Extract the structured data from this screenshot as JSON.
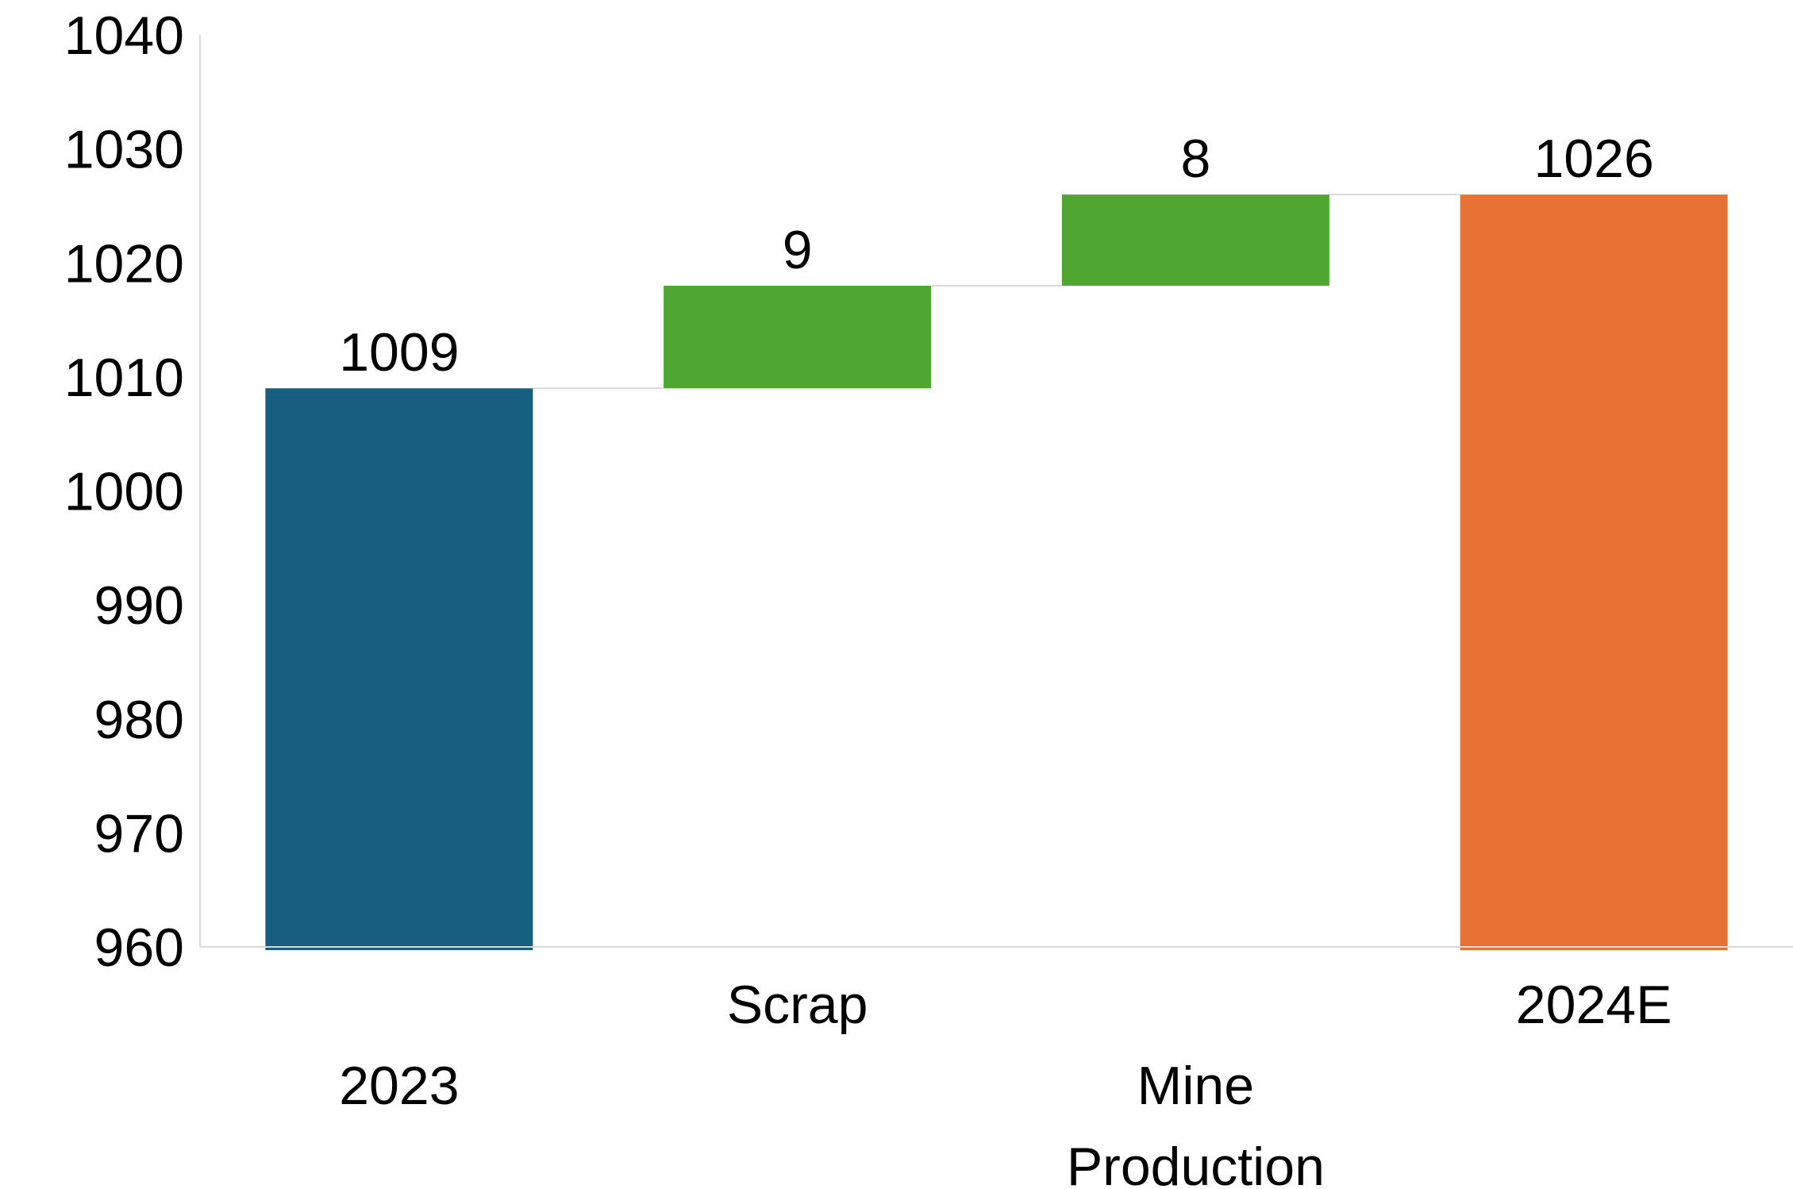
{
  "chart_data": {
    "type": "waterfall",
    "title": "",
    "xlabel": "",
    "ylabel": "",
    "ylim": [
      960,
      1040
    ],
    "yticks": [
      960,
      970,
      980,
      990,
      1000,
      1010,
      1020,
      1030,
      1040
    ],
    "grid": false,
    "categories": [
      "2023",
      "Scrap",
      "Mine Production",
      "2024E"
    ],
    "steps": [
      {
        "label": "2023",
        "kind": "total",
        "base": 960,
        "top": 1009,
        "value_label": "1009",
        "color": "#175f80"
      },
      {
        "label": "Scrap",
        "kind": "increase",
        "base": 1009,
        "top": 1018,
        "value_label": "9",
        "color": "#4fa731"
      },
      {
        "label": "Mine Production",
        "kind": "increase",
        "base": 1018,
        "top": 1026,
        "value_label": "8",
        "color": "#4fa731"
      },
      {
        "label": "2024E",
        "kind": "total",
        "base": 960,
        "top": 1026,
        "value_label": "1026",
        "color": "#e87234"
      }
    ],
    "connector_color": "#d9d9d9",
    "axis_color": "#d9d9d9"
  }
}
